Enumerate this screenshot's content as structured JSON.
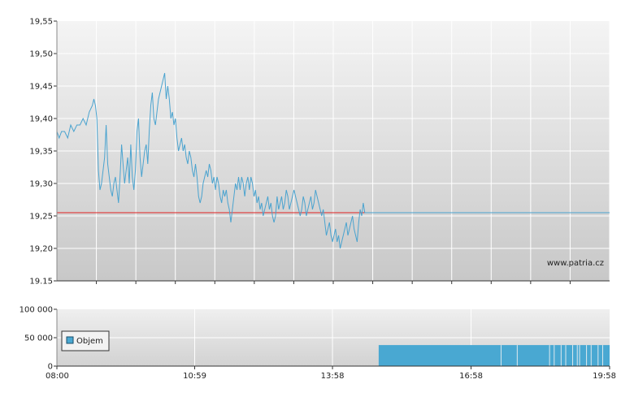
{
  "colors": {
    "price_line": "#4aa3cf",
    "reference_line": "#e02020",
    "volume_bar": "#49a8d2",
    "panel_top": "#f4f4f4",
    "panel_bottom": "#c8c8c8",
    "grid": "#ffffff"
  },
  "watermark": "www.patria.cz",
  "legend": {
    "label": "Objem"
  },
  "chart_data": [
    {
      "type": "line",
      "title": "",
      "xlabel": "",
      "ylabel": "",
      "ylim": [
        19.15,
        19.55
      ],
      "y_ticks": [
        "19,55",
        "19,50",
        "19,45",
        "19,40",
        "19,35",
        "19,30",
        "19,25",
        "19,20",
        "19.15"
      ],
      "y_tick_values": [
        19.55,
        19.5,
        19.45,
        19.4,
        19.35,
        19.3,
        19.25,
        19.2,
        19.15
      ],
      "x_range_minutes": [
        0,
        718
      ],
      "grid": true,
      "reference_line": {
        "value": 19.255
      },
      "series": [
        {
          "values": [
            [
              0,
              19.38
            ],
            [
              3,
              19.37
            ],
            [
              6,
              19.38
            ],
            [
              10,
              19.38
            ],
            [
              14,
              19.37
            ],
            [
              18,
              19.39
            ],
            [
              22,
              19.38
            ],
            [
              26,
              19.39
            ],
            [
              30,
              19.39
            ],
            [
              34,
              19.4
            ],
            [
              38,
              19.39
            ],
            [
              42,
              19.41
            ],
            [
              46,
              19.42
            ],
            [
              48,
              19.43
            ],
            [
              50,
              19.42
            ],
            [
              52,
              19.4
            ],
            [
              54,
              19.32
            ],
            [
              56,
              19.29
            ],
            [
              58,
              19.3
            ],
            [
              60,
              19.32
            ],
            [
              62,
              19.34
            ],
            [
              64,
              19.39
            ],
            [
              66,
              19.33
            ],
            [
              68,
              19.31
            ],
            [
              70,
              19.29
            ],
            [
              72,
              19.28
            ],
            [
              74,
              19.3
            ],
            [
              76,
              19.31
            ],
            [
              78,
              19.29
            ],
            [
              80,
              19.27
            ],
            [
              82,
              19.31
            ],
            [
              84,
              19.36
            ],
            [
              86,
              19.33
            ],
            [
              88,
              19.3
            ],
            [
              90,
              19.32
            ],
            [
              92,
              19.34
            ],
            [
              94,
              19.3
            ],
            [
              96,
              19.36
            ],
            [
              98,
              19.31
            ],
            [
              100,
              19.29
            ],
            [
              102,
              19.32
            ],
            [
              104,
              19.38
            ],
            [
              106,
              19.4
            ],
            [
              108,
              19.34
            ],
            [
              110,
              19.31
            ],
            [
              112,
              19.33
            ],
            [
              114,
              19.35
            ],
            [
              116,
              19.36
            ],
            [
              118,
              19.33
            ],
            [
              120,
              19.38
            ],
            [
              122,
              19.42
            ],
            [
              124,
              19.44
            ],
            [
              126,
              19.4
            ],
            [
              128,
              19.39
            ],
            [
              130,
              19.41
            ],
            [
              132,
              19.43
            ],
            [
              134,
              19.44
            ],
            [
              136,
              19.45
            ],
            [
              138,
              19.46
            ],
            [
              140,
              19.47
            ],
            [
              142,
              19.43
            ],
            [
              144,
              19.45
            ],
            [
              146,
              19.43
            ],
            [
              148,
              19.4
            ],
            [
              150,
              19.41
            ],
            [
              152,
              19.39
            ],
            [
              154,
              19.4
            ],
            [
              156,
              19.37
            ],
            [
              158,
              19.35
            ],
            [
              160,
              19.36
            ],
            [
              162,
              19.37
            ],
            [
              164,
              19.35
            ],
            [
              166,
              19.36
            ],
            [
              168,
              19.34
            ],
            [
              170,
              19.33
            ],
            [
              172,
              19.35
            ],
            [
              174,
              19.34
            ],
            [
              176,
              19.32
            ],
            [
              178,
              19.31
            ],
            [
              180,
              19.33
            ],
            [
              182,
              19.31
            ],
            [
              184,
              19.28
            ],
            [
              186,
              19.27
            ],
            [
              188,
              19.28
            ],
            [
              190,
              19.3
            ],
            [
              192,
              19.31
            ],
            [
              194,
              19.32
            ],
            [
              196,
              19.31
            ],
            [
              198,
              19.33
            ],
            [
              200,
              19.32
            ],
            [
              202,
              19.3
            ],
            [
              204,
              19.31
            ],
            [
              206,
              19.29
            ],
            [
              208,
              19.31
            ],
            [
              210,
              19.3
            ],
            [
              212,
              19.28
            ],
            [
              214,
              19.27
            ],
            [
              216,
              19.29
            ],
            [
              218,
              19.28
            ],
            [
              220,
              19.29
            ],
            [
              222,
              19.27
            ],
            [
              224,
              19.26
            ],
            [
              226,
              19.24
            ],
            [
              228,
              19.26
            ],
            [
              230,
              19.28
            ],
            [
              232,
              19.3
            ],
            [
              234,
              19.29
            ],
            [
              236,
              19.31
            ],
            [
              238,
              19.29
            ],
            [
              240,
              19.31
            ],
            [
              242,
              19.3
            ],
            [
              244,
              19.28
            ],
            [
              246,
              19.3
            ],
            [
              248,
              19.31
            ],
            [
              250,
              19.29
            ],
            [
              252,
              19.31
            ],
            [
              254,
              19.3
            ],
            [
              256,
              19.28
            ],
            [
              258,
              19.29
            ],
            [
              260,
              19.27
            ],
            [
              262,
              19.28
            ],
            [
              264,
              19.26
            ],
            [
              266,
              19.27
            ],
            [
              268,
              19.25
            ],
            [
              270,
              19.26
            ],
            [
              272,
              19.27
            ],
            [
              274,
              19.28
            ],
            [
              276,
              19.26
            ],
            [
              278,
              19.27
            ],
            [
              280,
              19.25
            ],
            [
              282,
              19.24
            ],
            [
              284,
              19.25
            ],
            [
              286,
              19.28
            ],
            [
              288,
              19.26
            ],
            [
              290,
              19.27
            ],
            [
              292,
              19.28
            ],
            [
              294,
              19.26
            ],
            [
              296,
              19.27
            ],
            [
              298,
              19.29
            ],
            [
              300,
              19.28
            ],
            [
              302,
              19.26
            ],
            [
              304,
              19.27
            ],
            [
              306,
              19.28
            ],
            [
              308,
              19.29
            ],
            [
              310,
              19.28
            ],
            [
              312,
              19.27
            ],
            [
              314,
              19.26
            ],
            [
              316,
              19.25
            ],
            [
              318,
              19.26
            ],
            [
              320,
              19.28
            ],
            [
              322,
              19.27
            ],
            [
              324,
              19.25
            ],
            [
              326,
              19.26
            ],
            [
              328,
              19.27
            ],
            [
              330,
              19.28
            ],
            [
              332,
              19.26
            ],
            [
              334,
              19.27
            ],
            [
              336,
              19.29
            ],
            [
              338,
              19.28
            ],
            [
              340,
              19.27
            ],
            [
              342,
              19.26
            ],
            [
              344,
              19.25
            ],
            [
              346,
              19.26
            ],
            [
              348,
              19.24
            ],
            [
              350,
              19.22
            ],
            [
              352,
              19.23
            ],
            [
              354,
              19.24
            ],
            [
              356,
              19.22
            ],
            [
              358,
              19.21
            ],
            [
              360,
              19.22
            ],
            [
              362,
              19.23
            ],
            [
              364,
              19.21
            ],
            [
              366,
              19.22
            ],
            [
              368,
              19.2
            ],
            [
              370,
              19.21
            ],
            [
              372,
              19.22
            ],
            [
              374,
              19.23
            ],
            [
              376,
              19.24
            ],
            [
              378,
              19.22
            ],
            [
              380,
              19.23
            ],
            [
              382,
              19.24
            ],
            [
              384,
              19.25
            ],
            [
              386,
              19.23
            ],
            [
              388,
              19.22
            ],
            [
              390,
              19.21
            ],
            [
              392,
              19.24
            ],
            [
              394,
              19.26
            ],
            [
              396,
              19.25
            ],
            [
              398,
              19.27
            ],
            [
              400,
              19.255
            ],
            [
              718,
              19.255
            ]
          ]
        }
      ]
    },
    {
      "type": "bar",
      "title": "",
      "xlabel": "",
      "ylabel": "",
      "ylim": [
        0,
        100000
      ],
      "y_ticks": [
        "100 000",
        "50 000",
        "0"
      ],
      "y_tick_values": [
        100000,
        50000,
        0
      ],
      "x_ticks": [
        "08:00",
        "10:59",
        "13:58",
        "16:58",
        "19:58"
      ],
      "x_tick_minutes": [
        0,
        179,
        358,
        538,
        718
      ],
      "series": [
        {
          "name": "Objem",
          "ranges": [
            [
              418,
              718
            ]
          ],
          "value": 37000
        }
      ]
    }
  ]
}
